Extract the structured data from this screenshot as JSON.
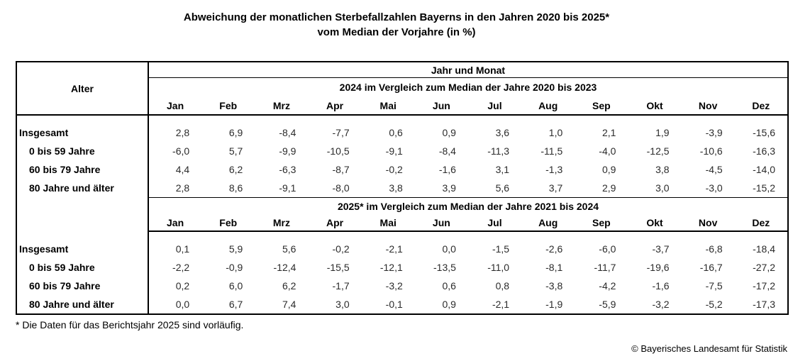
{
  "title": {
    "line1": "Abweichung der monatlichen Sterbefallzahlen Bayerns in den Jahren 2020 bis 2025*",
    "line2": "vom Median der Vorjahre (in %)"
  },
  "table": {
    "corner_label": "Alter",
    "top_header": "Jahr und Monat"
  },
  "chart_data": {
    "type": "table",
    "title": "Abweichung der monatlichen Sterbefallzahlen Bayerns in den Jahren 2020 bis 2025* vom Median der Vorjahre (in %)",
    "unit": "%",
    "columns": [
      "Jan",
      "Feb",
      "Mrz",
      "Apr",
      "Mai",
      "Jun",
      "Jul",
      "Aug",
      "Sep",
      "Okt",
      "Nov",
      "Dez"
    ],
    "sections": [
      {
        "name": "2024 im Vergleich zum Median der Jahre 2020 bis 2023",
        "rows": [
          {
            "label": "Insgesamt",
            "values": [
              2.8,
              6.9,
              -8.4,
              -7.7,
              0.6,
              0.9,
              3.6,
              1.0,
              2.1,
              1.9,
              -3.9,
              -15.6
            ]
          },
          {
            "label": "0 bis 59 Jahre",
            "values": [
              -6.0,
              5.7,
              -9.9,
              -10.5,
              -9.1,
              -8.4,
              -11.3,
              -11.5,
              -4.0,
              -12.5,
              -10.6,
              -16.3
            ]
          },
          {
            "label": "60 bis 79 Jahre",
            "values": [
              4.4,
              6.2,
              -6.3,
              -8.7,
              -0.2,
              -1.6,
              3.1,
              -1.3,
              0.9,
              3.8,
              -4.5,
              -14.0
            ]
          },
          {
            "label": "80 Jahre und älter",
            "values": [
              2.8,
              8.6,
              -9.1,
              -8.0,
              3.8,
              3.9,
              5.6,
              3.7,
              2.9,
              3.0,
              -3.0,
              -15.2
            ]
          }
        ]
      },
      {
        "name": "2025* im Vergleich zum Median der Jahre 2021 bis 2024",
        "rows": [
          {
            "label": "Insgesamt",
            "values": [
              0.1,
              5.9,
              5.6,
              -0.2,
              -2.1,
              0.0,
              -1.5,
              -2.6,
              -6.0,
              -3.7,
              -6.8,
              -18.4
            ]
          },
          {
            "label": "0 bis 59 Jahre",
            "values": [
              -2.2,
              -0.9,
              -12.4,
              -15.5,
              -12.1,
              -13.5,
              -11.0,
              -8.1,
              -11.7,
              -19.6,
              -16.7,
              -27.2
            ]
          },
          {
            "label": "60 bis 79 Jahre",
            "values": [
              0.2,
              6.0,
              6.2,
              -1.7,
              -3.2,
              0.6,
              0.8,
              -3.8,
              -4.2,
              -1.6,
              -7.5,
              -17.2
            ]
          },
          {
            "label": "80 Jahre und älter",
            "values": [
              0.0,
              6.7,
              7.4,
              3.0,
              -0.1,
              0.9,
              -2.1,
              -1.9,
              -5.9,
              -3.2,
              -5.2,
              -17.3
            ]
          }
        ]
      }
    ]
  },
  "footnote": "* Die Daten für das Berichtsjahr 2025 sind vorläufig.",
  "copyright": "© Bayerisches Landesamt für Statistik",
  "colors": {
    "text": "#000000",
    "value_text": "#2b2b2b",
    "border": "#000000",
    "background": "#ffffff"
  }
}
